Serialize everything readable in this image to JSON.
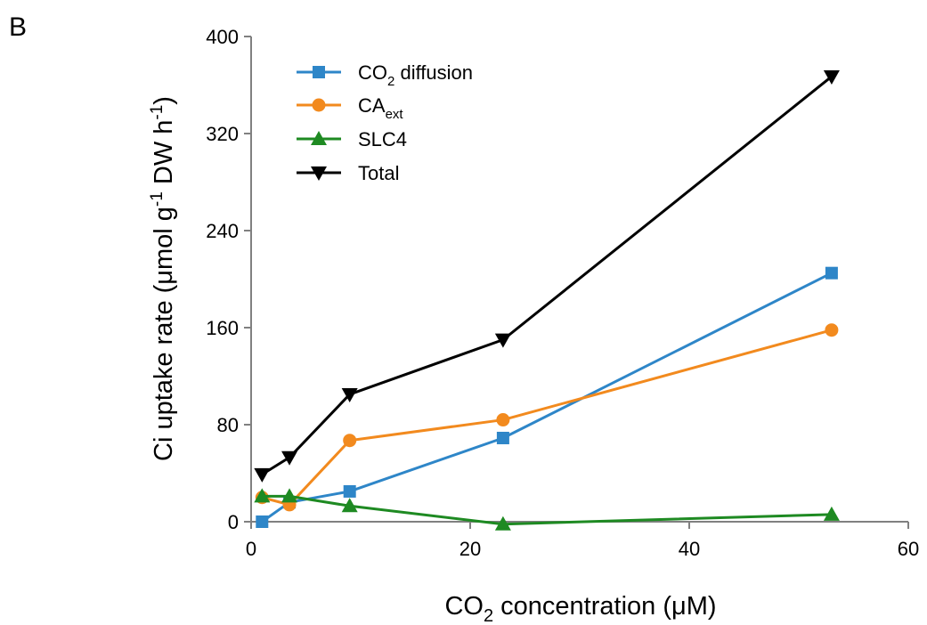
{
  "panel_label": "B",
  "chart_data": {
    "type": "line",
    "title": "",
    "xlabel": {
      "main": "CO",
      "sub": "2",
      "rest": " concentration (μM)"
    },
    "ylabel": {
      "main": "Ci uptake rate (μmol g",
      "sup": "-1",
      "mid": " DW h",
      "sup2": "-1",
      "end": ")"
    },
    "xlim": [
      0,
      60
    ],
    "ylim": [
      0,
      400
    ],
    "xticks": [
      0,
      20,
      40,
      60
    ],
    "yticks": [
      0,
      80,
      160,
      240,
      320,
      400
    ],
    "grid": false,
    "legend_position": "top-left",
    "series": [
      {
        "id": "co2",
        "name": "CO",
        "name_sub": "2",
        "name_rest": " diffusion",
        "color": "#2e86c8",
        "marker": "square",
        "x": [
          1,
          3.5,
          9,
          23,
          53
        ],
        "y": [
          0,
          16,
          25,
          69,
          205
        ]
      },
      {
        "id": "ca",
        "name": "CA",
        "name_sub": "ext",
        "name_rest": "",
        "color": "#f28a1e",
        "marker": "circle",
        "x": [
          1,
          3.5,
          9,
          23,
          53
        ],
        "y": [
          20,
          14,
          67,
          84,
          158
        ]
      },
      {
        "id": "slc4",
        "name": "SLC4",
        "name_sub": "",
        "name_rest": "",
        "color": "#1e8a22",
        "marker": "triangle-up",
        "x": [
          1,
          3.5,
          9,
          23,
          53
        ],
        "y": [
          21,
          21,
          13,
          -2,
          6
        ]
      },
      {
        "id": "total",
        "name": "Total",
        "name_sub": "",
        "name_rest": "",
        "color": "#000000",
        "marker": "triangle-down",
        "x": [
          1,
          3.5,
          9,
          23,
          53
        ],
        "y": [
          39,
          53,
          105,
          150,
          367
        ]
      }
    ]
  }
}
